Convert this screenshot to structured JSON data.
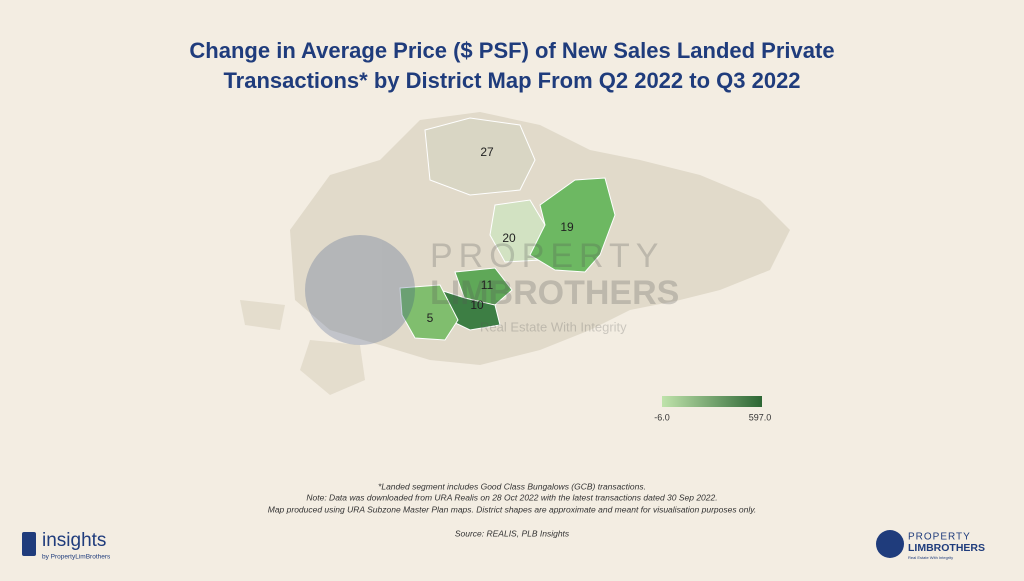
{
  "header": {
    "title_lines": [
      "Change in Average Price ($ PSF) of New Sales Landed Private",
      "Transactions* by District Map From Q2 2022 to Q3 2022"
    ]
  },
  "districts": [
    {
      "label": "27",
      "color": "#d9d6c4"
    },
    {
      "label": "20",
      "color": "#d2e2c2"
    },
    {
      "label": "19",
      "color": "#6db862"
    },
    {
      "label": "11",
      "color": "#5fa858"
    },
    {
      "label": "10",
      "color": "#3d7e44"
    },
    {
      "label": "5",
      "color": "#80be6e"
    }
  ],
  "legend": {
    "min": {
      "value": -6,
      "label": "-6.0"
    },
    "max": {
      "value": 597,
      "label": "597.0"
    },
    "color_low": "#bfe3ab",
    "color_high": "#2c6634"
  },
  "watermark": {
    "brand_top": "PROPERTY",
    "brand_bottom": "LIMBROTHERS",
    "tagline": "Real Estate With Integrity"
  },
  "notes": [
    "*Landed segment includes Good Class Bungalows (GCB) transactions.",
    "Note: Data was downloaded from URA Realis on 28 Oct 2022 with the latest transactions dated 30 Sep 2022.",
    "Map produced using URA Subzone Master Plan maps. District shapes are approximate and meant for visualisation purposes only."
  ],
  "source": "Source: REALIS, PLB Insights",
  "logo_left": {
    "name": "insights",
    "byline": "by PropertyLimBrothers"
  },
  "logo_right": {
    "top": "PROPERTY",
    "bottom": "LIMBROTHERS",
    "tagline": "Real Estate With Integrity"
  }
}
